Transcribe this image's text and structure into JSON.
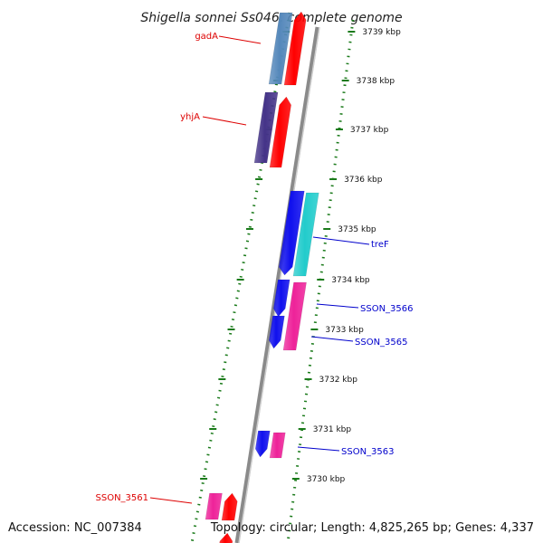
{
  "header": {
    "title": "Shigella sonnei Ss046, complete genome"
  },
  "footer": {
    "accession": "Accession: NC_007384",
    "summary": "Topology: circular; Length: 4,825,265 bp; Genes: 4,337"
  },
  "colors": {
    "background": "#ffffff",
    "backbone": "#8a8a8a",
    "backbone_highlight": "#cfcfcf",
    "ruler_green": "#1a7a1a",
    "label_red": "#dd0000",
    "label_blue": "#0000cc",
    "gene_red": "#ff0000",
    "gene_blue": "#1010ee",
    "gene_magenta": "#ee2299",
    "gene_cyan": "#22cccc",
    "gene_steelblue": "#5588bb",
    "gene_indigo": "#443388"
  },
  "ruler": {
    "ticks": [
      {
        "label": "3739 kbp"
      },
      {
        "label": "3738 kbp"
      },
      {
        "label": "3737 kbp"
      },
      {
        "label": "3736 kbp"
      },
      {
        "label": "3735 kbp"
      },
      {
        "label": "3734 kbp"
      },
      {
        "label": "3733 kbp"
      },
      {
        "label": "3732 kbp"
      },
      {
        "label": "3731 kbp"
      },
      {
        "label": "3730 kbp"
      }
    ]
  },
  "features": [
    {
      "id": "gadA-ring",
      "color": "gene_steelblue",
      "strand": "none"
    },
    {
      "id": "gadA-inner",
      "color": "gene_red",
      "strand": "up"
    },
    {
      "id": "yhjA-ring",
      "color": "gene_indigo",
      "strand": "none"
    },
    {
      "id": "yhjA-inner",
      "color": "gene_red",
      "strand": "up"
    },
    {
      "id": "treF-blue",
      "color": "gene_blue",
      "strand": "down"
    },
    {
      "id": "treF-cyan",
      "color": "gene_cyan",
      "strand": "none"
    },
    {
      "id": "ss3566-blue",
      "color": "gene_blue",
      "strand": "down"
    },
    {
      "id": "ss3566-magenta",
      "color": "gene_magenta",
      "strand": "none"
    },
    {
      "id": "ss3565-blue",
      "color": "gene_blue",
      "strand": "down"
    },
    {
      "id": "ss3563-blue",
      "color": "gene_blue",
      "strand": "down"
    },
    {
      "id": "ss3563-magenta",
      "color": "gene_magenta",
      "strand": "none"
    },
    {
      "id": "ss3561-magenta",
      "color": "gene_magenta",
      "strand": "none"
    },
    {
      "id": "ss3561-red",
      "color": "gene_red",
      "strand": "up"
    },
    {
      "id": "bottom-red",
      "color": "gene_red",
      "strand": "up"
    }
  ],
  "labels": [
    {
      "text": "gadA",
      "color": "label_red"
    },
    {
      "text": "yhjA",
      "color": "label_red"
    },
    {
      "text": "treF",
      "color": "label_blue"
    },
    {
      "text": "SSON_3566",
      "color": "label_blue"
    },
    {
      "text": "SSON_3565",
      "color": "label_blue"
    },
    {
      "text": "SSON_3563",
      "color": "label_blue"
    },
    {
      "text": "SSON_3561",
      "color": "label_red"
    }
  ]
}
